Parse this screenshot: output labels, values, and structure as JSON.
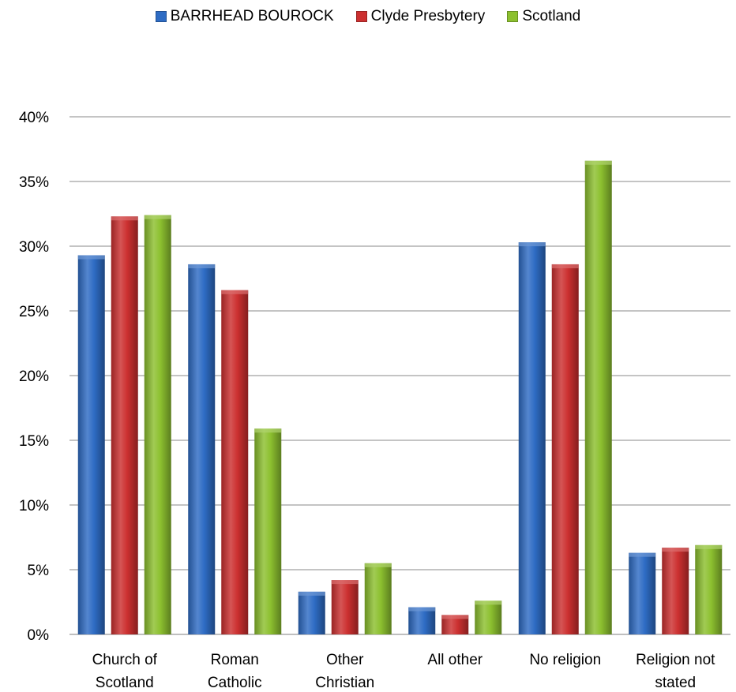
{
  "chart_data": {
    "type": "bar",
    "categories": [
      [
        "Church of",
        "Scotland"
      ],
      [
        "Roman",
        "Catholic"
      ],
      [
        "Other",
        "Christian"
      ],
      [
        "All other"
      ],
      [
        "No religion"
      ],
      [
        "Religion not",
        "stated"
      ]
    ],
    "series": [
      {
        "name": "BARRHEAD BOUROCK",
        "color": "#2e6cc4",
        "values": [
          29.3,
          28.6,
          3.3,
          2.1,
          30.3,
          6.3
        ]
      },
      {
        "name": "Clyde Presbytery",
        "color": "#cc3030",
        "values": [
          32.3,
          26.6,
          4.2,
          1.5,
          28.6,
          6.7
        ]
      },
      {
        "name": "Scotland",
        "color": "#8cc02f",
        "values": [
          32.4,
          15.9,
          5.5,
          2.6,
          36.6,
          6.9
        ]
      }
    ],
    "ylim": [
      0,
      40
    ],
    "yticks": [
      "0%",
      "5%",
      "10%",
      "15%",
      "20%",
      "25%",
      "30%",
      "35%",
      "40%"
    ],
    "ytick_values": [
      0,
      5,
      10,
      15,
      20,
      25,
      30,
      35,
      40
    ],
    "grid": true,
    "legend_position": "top-center"
  }
}
